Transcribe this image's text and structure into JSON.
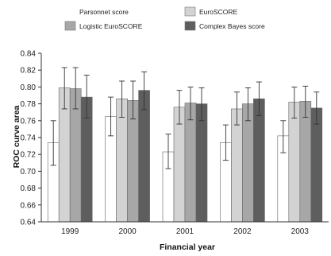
{
  "chart_data": {
    "type": "bar",
    "title": "",
    "xlabel": "Financial year",
    "ylabel": "ROC curve area",
    "ylim": [
      0.64,
      0.84
    ],
    "yticks": [
      "0.64",
      "0.66",
      "0.68",
      "0.70",
      "0.72",
      "0.74",
      "0.76",
      "0.78",
      "0.80",
      "0.82",
      "0.84"
    ],
    "grid": false,
    "legend_position": "top",
    "categories": [
      "1999",
      "2000",
      "2001",
      "2002",
      "2003"
    ],
    "series": [
      {
        "name": "Parsonnet score",
        "color": "#ffffff",
        "values": [
          0.734,
          0.765,
          0.723,
          0.734,
          0.742
        ],
        "error_low": [
          0.707,
          0.742,
          0.703,
          0.713,
          0.722
        ],
        "error_high": [
          0.76,
          0.788,
          0.744,
          0.755,
          0.76
        ]
      },
      {
        "name": "EuroSCORE",
        "color": "#d3d3d3",
        "values": [
          0.799,
          0.786,
          0.776,
          0.774,
          0.782
        ],
        "error_low": [
          0.774,
          0.764,
          0.756,
          0.755,
          0.763
        ],
        "error_high": [
          0.823,
          0.807,
          0.796,
          0.794,
          0.8
        ]
      },
      {
        "name": "Logistic EuroSCORE",
        "color": "#a7a7a7",
        "values": [
          0.798,
          0.784,
          0.781,
          0.78,
          0.783
        ],
        "error_low": [
          0.774,
          0.762,
          0.761,
          0.76,
          0.764
        ],
        "error_high": [
          0.823,
          0.807,
          0.8,
          0.799,
          0.801
        ]
      },
      {
        "name": "Complex Bayes score",
        "color": "#5e5e5e",
        "values": [
          0.788,
          0.796,
          0.78,
          0.786,
          0.775
        ],
        "error_low": [
          0.763,
          0.773,
          0.76,
          0.766,
          0.756
        ],
        "error_high": [
          0.814,
          0.818,
          0.799,
          0.806,
          0.794
        ]
      }
    ]
  }
}
